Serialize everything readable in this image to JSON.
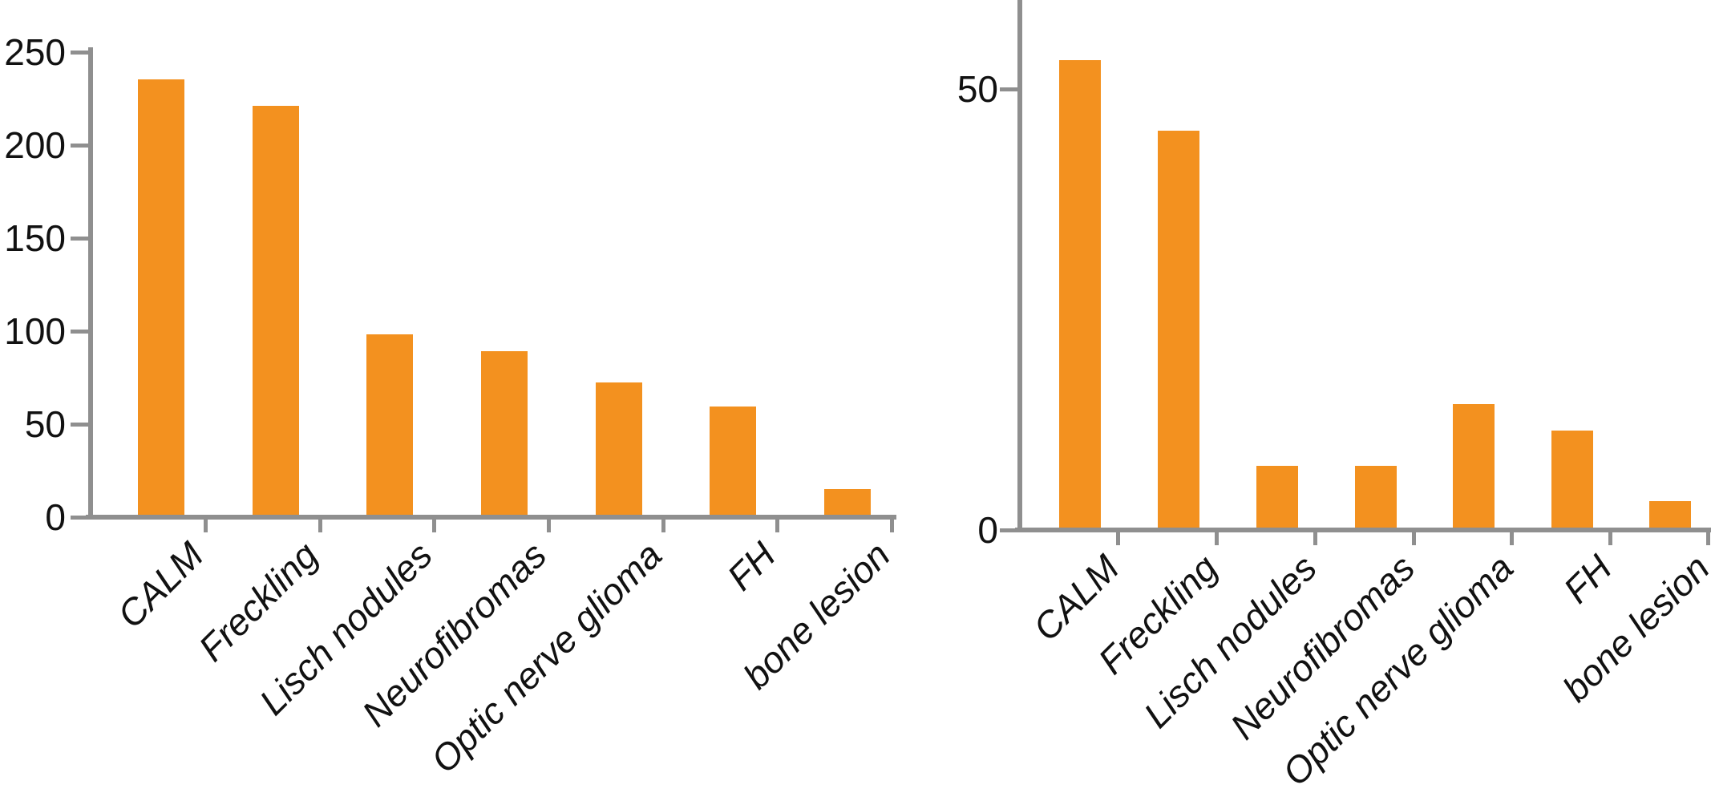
{
  "figure": {
    "background": "#ffffff",
    "text_color": "#111111",
    "axis_color": "#8f8f8f",
    "bar_color": "#f3911f"
  },
  "chart_data": [
    {
      "type": "bar",
      "title": "",
      "xlabel": "",
      "ylabel": "",
      "categories": [
        "CALM",
        "Freckling",
        "Lisch nodules",
        "Neurofibromas",
        "Optic nerve glioma",
        "FH",
        "bone lesion"
      ],
      "values": [
        234,
        220,
        97,
        88,
        71,
        58,
        14
      ],
      "yticks": [
        0,
        50,
        100,
        150,
        200,
        250
      ],
      "ylim": [
        0,
        250
      ],
      "grid": false,
      "legend": "none",
      "bar_color": "#f3911f",
      "axis_color": "#8f8f8f",
      "tick_label_style": "plain",
      "category_label_style": "italic, rotated 45deg"
    },
    {
      "type": "bar",
      "title": "",
      "xlabel": "",
      "ylabel": "",
      "categories": [
        "CALM",
        "Freckling",
        "Lisch nodules",
        "Neurofibromas",
        "Optic nerve glioma",
        "FH",
        "bone lesion"
      ],
      "values": [
        53,
        45,
        7,
        7,
        14,
        11,
        3
      ],
      "yticks": [
        0,
        50
      ],
      "ylim": [
        0,
        60
      ],
      "grid": false,
      "legend": "none",
      "bar_color": "#f3911f",
      "axis_color": "#8f8f8f",
      "tick_label_style": "plain",
      "category_label_style": "italic, rotated 45deg",
      "note_axis": "y-axis continues past top edge of image"
    }
  ]
}
